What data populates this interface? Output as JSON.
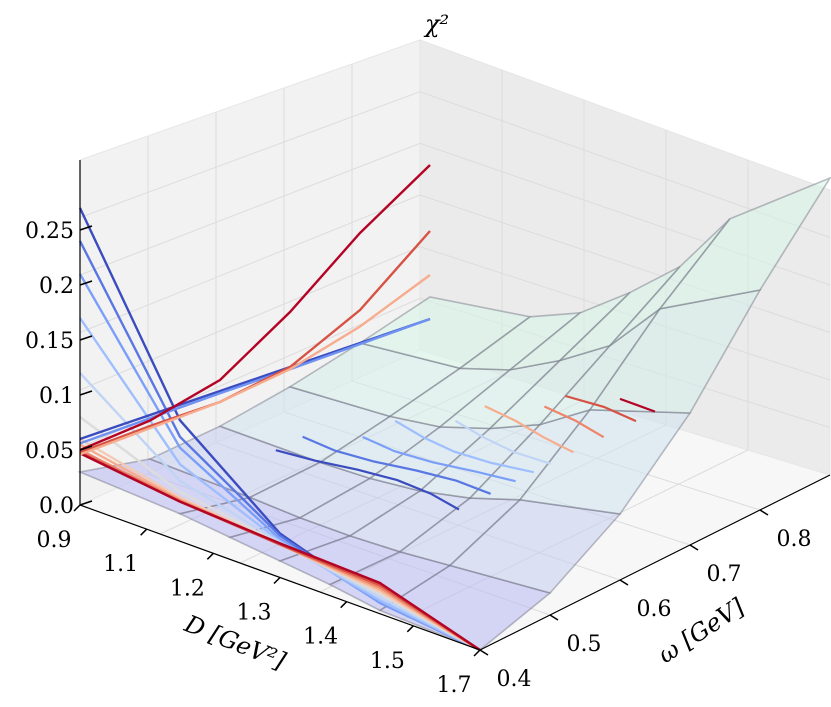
{
  "chart_data": {
    "type": "surface",
    "title": "",
    "zlabel": "χ²",
    "xlabel": "ω [GeV]",
    "ylabel": "D [GeV²]",
    "x_ticks": [
      "0.4",
      "0.5",
      "0.6",
      "0.7",
      "0.8"
    ],
    "y_ticks": [
      "0.9",
      "1.1",
      "1.2",
      "1.3",
      "1.4",
      "1.5",
      "1.7"
    ],
    "z_ticks": [
      "0.0",
      "0.05",
      "0.1",
      "0.15",
      "0.2",
      "0.25"
    ],
    "zlim": [
      0.0,
      0.28
    ],
    "grid": true,
    "surface": {
      "omega": [
        0.4,
        0.5,
        0.6,
        0.7,
        0.8,
        0.9
      ],
      "D": [
        0.9,
        1.1,
        1.2,
        1.3,
        1.4,
        1.5,
        1.7
      ],
      "chi2_D_by_row": [
        [
          0.0,
          0.02,
          0.06,
          0.12,
          0.2,
          0.27
        ],
        [
          0.003,
          0.012,
          0.04,
          0.09,
          0.15,
          0.2
        ],
        [
          0.01,
          0.008,
          0.025,
          0.06,
          0.1,
          0.14
        ],
        [
          0.015,
          0.006,
          0.015,
          0.04,
          0.07,
          0.1
        ],
        [
          0.02,
          0.006,
          0.01,
          0.025,
          0.045,
          0.065
        ],
        [
          0.025,
          0.008,
          0.008,
          0.018,
          0.03,
          0.045
        ],
        [
          0.03,
          0.01,
          0.008,
          0.012,
          0.02,
          0.03
        ]
      ],
      "colors": [
        "#b8b8f2",
        "#c6cdf0",
        "#cfe3ee",
        "#d4eee8",
        "#d6f5e6",
        "#d8fae4"
      ]
    },
    "projections_left": {
      "colors": [
        "#3b4cc0",
        "#5977e3",
        "#7b9ff9",
        "#9ebeff",
        "#c0d4f5",
        "#dddcdc",
        "#f2cbb7",
        "#f7ac8e",
        "#ee8468",
        "#d65244",
        "#b40426"
      ],
      "y_values": [
        0.9,
        1.1,
        1.3,
        1.5,
        1.7
      ],
      "series_z": [
        [
          0.0,
          0.01,
          0.04,
          0.11,
          0.27
        ],
        [
          0.0,
          0.01,
          0.038,
          0.095,
          0.24
        ],
        [
          0.0,
          0.01,
          0.035,
          0.085,
          0.21
        ],
        [
          0.0,
          0.012,
          0.033,
          0.07,
          0.17
        ],
        [
          0.0,
          0.015,
          0.032,
          0.055,
          0.12
        ],
        [
          0.0,
          0.018,
          0.031,
          0.045,
          0.08
        ],
        [
          0.0,
          0.02,
          0.03,
          0.04,
          0.06
        ],
        [
          0.0,
          0.022,
          0.03,
          0.038,
          0.055
        ],
        [
          0.0,
          0.024,
          0.03,
          0.037,
          0.05
        ],
        [
          0.0,
          0.026,
          0.03,
          0.036,
          0.048
        ],
        [
          0.0,
          0.028,
          0.031,
          0.036,
          0.047
        ]
      ]
    },
    "projections_right": {
      "colors": [
        "#3b4cc0",
        "#6f91f2",
        "#b40426",
        "#d65244",
        "#f7ac8e"
      ],
      "x_values": [
        0.4,
        0.5,
        0.6,
        0.7,
        0.8,
        0.9
      ],
      "series_z": [
        [
          0.06,
          0.05,
          0.04,
          0.03,
          0.02,
          0.01
        ],
        [
          0.056,
          0.047,
          0.038,
          0.028,
          0.019,
          0.01
        ],
        [
          0.05,
          0.045,
          0.05,
          0.08,
          0.12,
          0.15
        ],
        [
          0.048,
          0.04,
          0.03,
          0.03,
          0.05,
          0.09
        ],
        [
          0.046,
          0.038,
          0.03,
          0.028,
          0.035,
          0.05
        ]
      ]
    },
    "projections_floor": {
      "colors": [
        "#3b4cc0",
        "#5977e3",
        "#7b9ff9",
        "#9ebeff",
        "#c0d4f5",
        "#f7ac8e",
        "#ee8468",
        "#d65244",
        "#b40426"
      ]
    }
  }
}
